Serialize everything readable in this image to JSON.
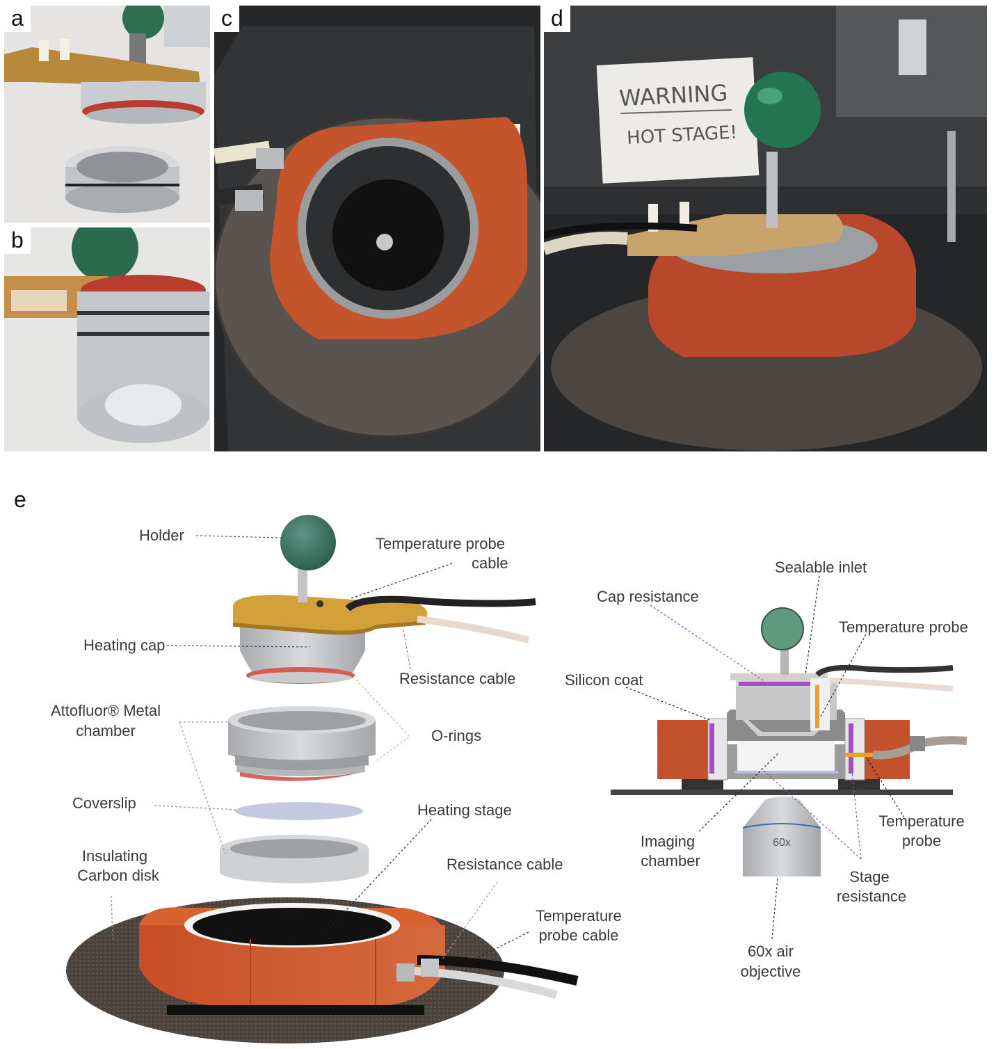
{
  "panels": {
    "a": {
      "letter": "a"
    },
    "b": {
      "letter": "b"
    },
    "c": {
      "letter": "c"
    },
    "d": {
      "letter": "d",
      "sign_line1": "WARNING",
      "sign_line2": "HOT STAGE!"
    },
    "e": {
      "letter": "e"
    }
  },
  "exploded": {
    "holder": "Holder",
    "temp_probe_cable_1": "Temperature probe",
    "temp_probe_cable_2": "cable",
    "heating_cap": "Heating cap",
    "resistance_cable_top": "Resistance cable",
    "attofluor_1": "Attofluor® Metal",
    "attofluor_2": "chamber",
    "o_rings": "O-rings",
    "coverslip": "Coverslip",
    "heating_stage": "Heating stage",
    "insulating_1": "Insulating",
    "insulating_2": "Carbon disk",
    "resistance_cable_bottom": "Resistance cable",
    "temp_probe_cable_b1": "Temperature",
    "temp_probe_cable_b2": "probe cable"
  },
  "cross_section": {
    "sealable_inlet": "Sealable inlet",
    "cap_resistance": "Cap resistance",
    "temperature_probe_top": "Temperature probe",
    "silicon_coat": "Silicon coat",
    "imaging_chamber_1": "Imaging",
    "imaging_chamber_2": "chamber",
    "temperature_probe_right_1": "Temperature",
    "temperature_probe_right_2": "probe",
    "stage_resistance_1": "Stage",
    "stage_resistance_2": "resistance",
    "objective_mark": "60x",
    "objective_1": "60x air",
    "objective_2": "objective"
  },
  "colors": {
    "orange": "#c9532c",
    "gold": "#d4a33c",
    "green_ball": "#2f6e58",
    "purple": "#a24fc4",
    "metal": "#c7c9cb",
    "carbon": "#4a423d"
  }
}
